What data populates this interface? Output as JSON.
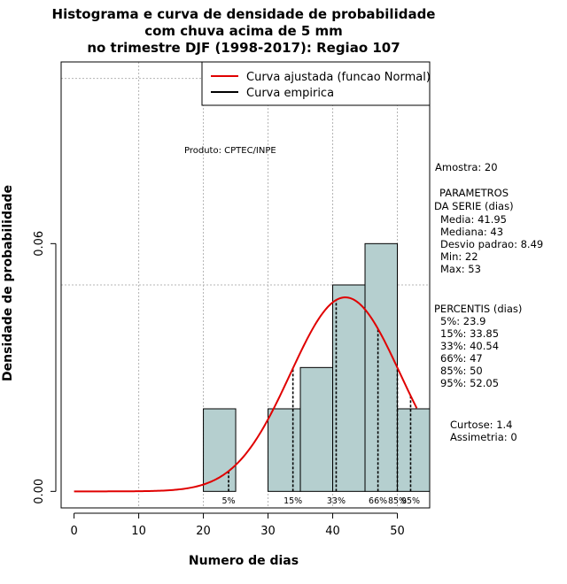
{
  "chart_data": {
    "type": "bar",
    "title_lines": [
      "Histograma e curva de densidade de probabilidade",
      "com chuva acima de 5 mm",
      "no trimestre DJF (1998-2017): Regiao 107"
    ],
    "xlabel": "Numero de dias",
    "ylabel": "Densidade de probabilidade",
    "xlim": [
      -2,
      55
    ],
    "ylim": [
      -0.004,
      0.104
    ],
    "x_ticks": [
      0,
      10,
      20,
      30,
      40,
      50
    ],
    "x_tick_labels": [
      "0",
      "10",
      "20",
      "30",
      "40",
      "50"
    ],
    "y_ticks": [
      0.0,
      0.06
    ],
    "y_tick_labels": [
      "0.00",
      "0.06"
    ],
    "grid": true,
    "grid_x": [
      10,
      20,
      30,
      40,
      50
    ],
    "grid_y": [
      0.05,
      0.1
    ],
    "bins": [
      {
        "from": 20,
        "to": 25,
        "density": 0.02
      },
      {
        "from": 25,
        "to": 30,
        "density": 0.0
      },
      {
        "from": 30,
        "to": 35,
        "density": 0.02
      },
      {
        "from": 35,
        "to": 40,
        "density": 0.03
      },
      {
        "from": 40,
        "to": 45,
        "density": 0.05
      },
      {
        "from": 45,
        "to": 50,
        "density": 0.06
      },
      {
        "from": 50,
        "to": 55,
        "density": 0.02
      }
    ],
    "bar_color": "#b5cfcf",
    "normal_curve": {
      "mean": 41.95,
      "sd": 8.49,
      "x_from": 0,
      "x_to": 53,
      "color": "#e00000"
    },
    "percentile_lines": [
      {
        "label": "5%",
        "value": 23.9
      },
      {
        "label": "15%",
        "value": 33.85
      },
      {
        "label": "33%",
        "value": 40.54
      },
      {
        "label": "66%",
        "value": 47
      },
      {
        "label": "85%",
        "value": 50
      },
      {
        "label": "95%",
        "value": 52.05
      }
    ],
    "legend": {
      "position": "top-right",
      "entries": [
        {
          "label": "Curva ajustada (funcao Normal)",
          "color": "#e00000"
        },
        {
          "label": "Curva empirica",
          "color": "#000000"
        }
      ]
    },
    "annotations": {
      "product": "Produto: CPTEC/INPE"
    }
  },
  "side_panel": {
    "sample": "Amostra: 20",
    "params_title_1": "PARAMETROS",
    "params_title_2": "DA SERIE (dias)",
    "params": [
      "Media: 41.95",
      "Mediana: 43",
      "Desvio padrao: 8.49",
      "Min: 22",
      "Max: 53"
    ],
    "percentiles_title": "PERCENTIS (dias)",
    "percentiles": [
      "5%: 23.9",
      "15%: 33.85",
      "33%: 40.54",
      "66%: 47",
      "85%: 50",
      "95%: 52.05"
    ],
    "shape": [
      "Curtose: 1.4",
      "Assimetria: 0"
    ]
  }
}
